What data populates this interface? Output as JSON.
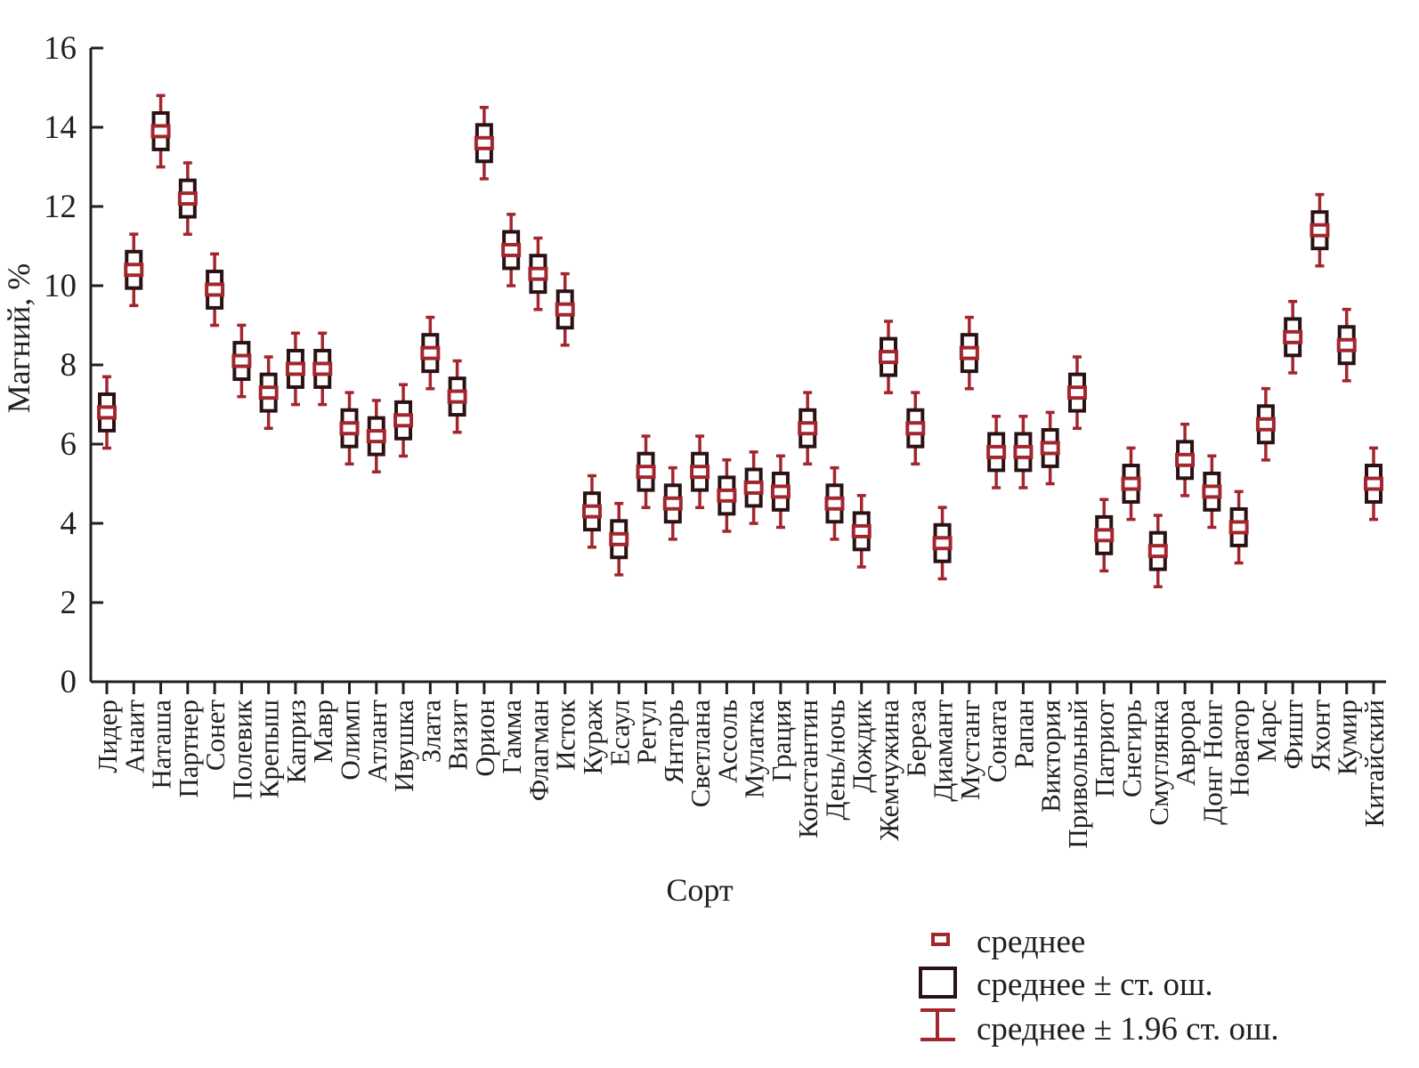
{
  "chart_data": {
    "type": "box",
    "xlabel": "Сорт",
    "ylabel": "Магний, %",
    "ylim": [
      0,
      16
    ],
    "yticks": [
      0,
      2,
      4,
      6,
      8,
      10,
      12,
      14,
      16
    ],
    "grid": false,
    "legend_position": "bottom-right",
    "legend": [
      {
        "key": "mean",
        "label": "среднее"
      },
      {
        "key": "se",
        "label": "среднее ± ст. ош."
      },
      {
        "key": "ci",
        "label": "среднее ± 1.96 ст. ош."
      }
    ],
    "colors": {
      "mean": "#a3262f",
      "box": "#2a1214",
      "whisker": "#a3262f",
      "axis": "#231f20"
    },
    "se": 0.46,
    "categories": [
      "Лидер",
      "Анаит",
      "Наташа",
      "Партнер",
      "Сонет",
      "Полевик",
      "Крепыш",
      "Каприз",
      "Мавр",
      "Олимп",
      "Атлант",
      "Ивушка",
      "Злата",
      "Визит",
      "Орион",
      "Гамма",
      "Флагман",
      "Исток",
      "Кураж",
      "Есаул",
      "Регул",
      "Янтарь",
      "Светлана",
      "Ассоль",
      "Мулатка",
      "Грация",
      "Константин",
      "День/ночь",
      "Дождик",
      "Жемчужина",
      "Береза",
      "Диамант",
      "Мустанг",
      "Соната",
      "Рапан",
      "Виктория",
      "Привольный",
      "Патриот",
      "Снегирь",
      "Смуглянка",
      "Аврора",
      "Донг Нонг",
      "Новатор",
      "Марс",
      "Фишт",
      "Яхонт",
      "Кумир",
      "Китайский"
    ],
    "means": [
      6.8,
      10.4,
      13.9,
      12.2,
      9.9,
      8.1,
      7.3,
      7.9,
      7.9,
      6.4,
      6.2,
      6.6,
      8.3,
      7.2,
      13.6,
      10.9,
      10.3,
      9.4,
      4.3,
      3.6,
      5.3,
      4.5,
      5.3,
      4.7,
      4.9,
      4.8,
      6.4,
      4.5,
      3.8,
      8.2,
      6.4,
      3.5,
      8.3,
      5.8,
      5.8,
      5.9,
      7.3,
      3.7,
      5.0,
      3.3,
      5.6,
      4.8,
      3.9,
      6.5,
      8.7,
      11.4,
      8.5,
      5.0
    ]
  }
}
